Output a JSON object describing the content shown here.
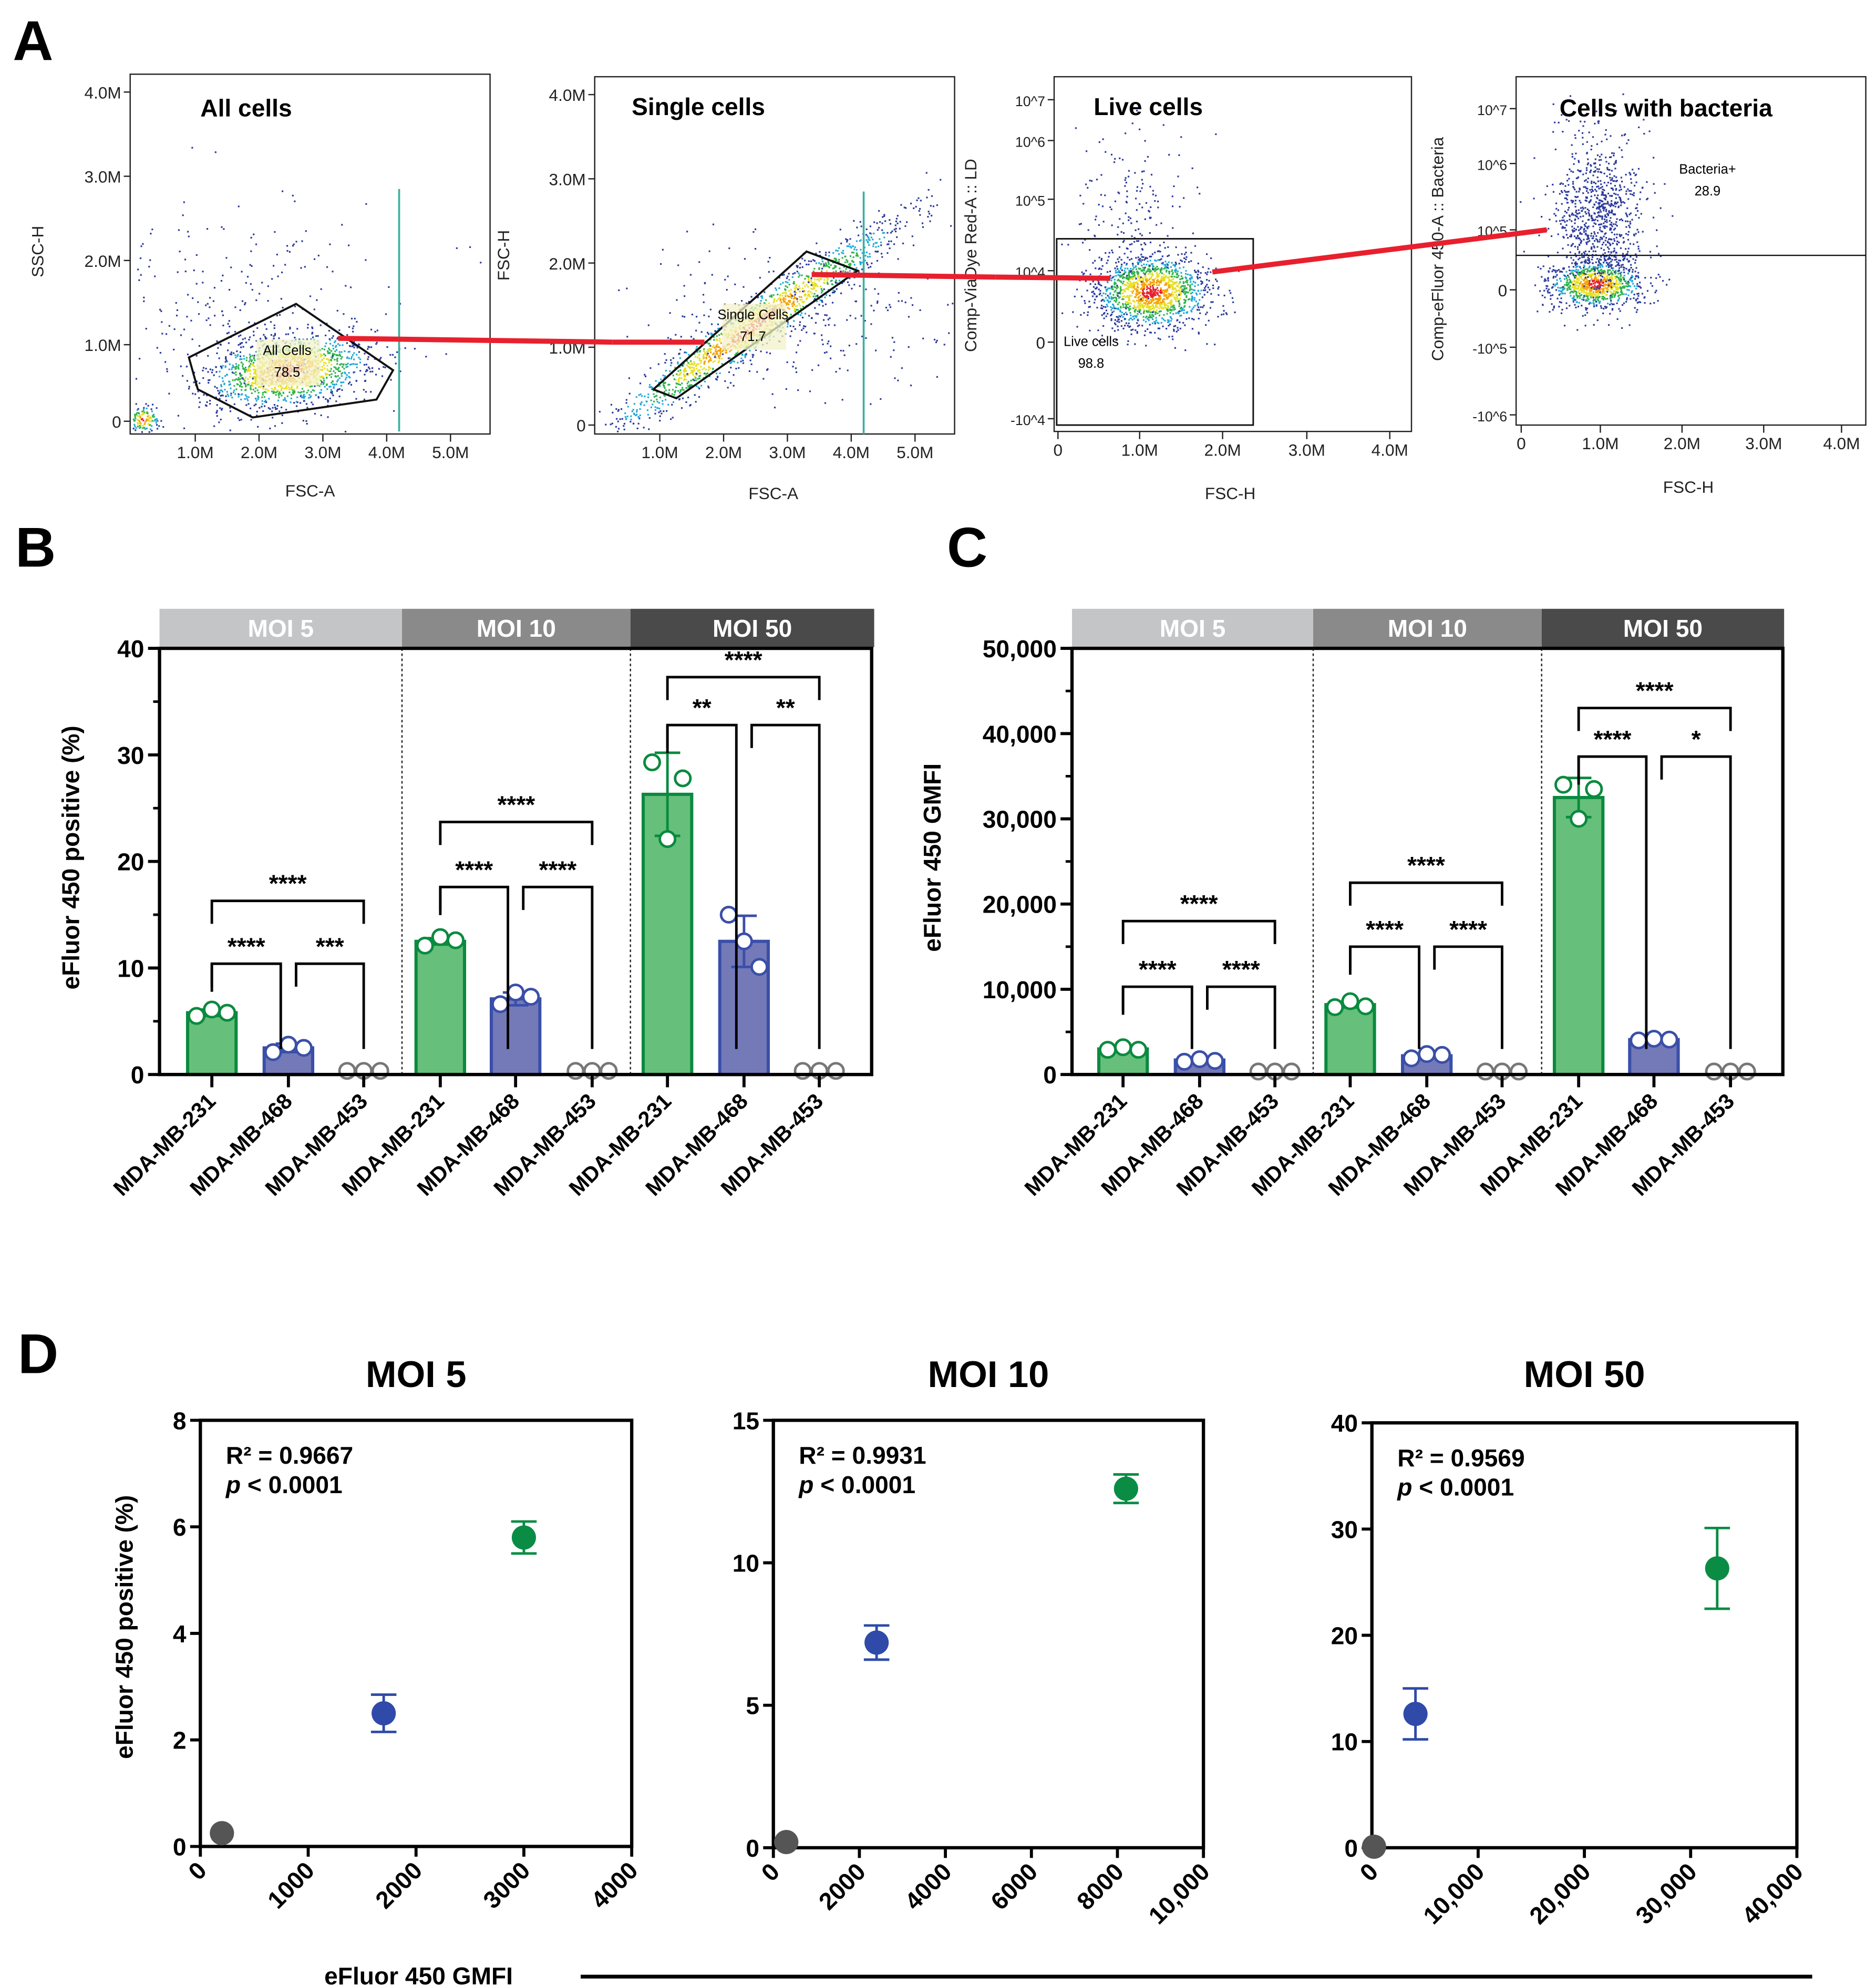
{
  "panel_letters": [
    "A",
    "B",
    "C",
    "D"
  ],
  "colors": {
    "green_fill": "#66bf7a",
    "green_stroke": "#0a8a3f",
    "blue_fill": "#7479b8",
    "blue_stroke": "#3a4fa8",
    "gray_point": "#777777",
    "moi5_band": "#c4c5c7",
    "moi10_band": "#8a8a8a",
    "moi50_band": "#4a4a4a",
    "gate_link": "#e8202e",
    "d_green": "#0b8c45",
    "d_blue": "#2f4aa8",
    "d_gray": "#555555"
  },
  "flow_panels": [
    {
      "title": "All cells",
      "xlabel": "FSC-A",
      "ylabel": "SSC-H",
      "xticks": [
        "1.0M",
        "2.0M",
        "3.0M",
        "4.0M",
        "5.0M"
      ],
      "yticks": [
        "4.0M",
        "3.0M",
        "2.0M",
        "1.0M",
        "0"
      ],
      "gate_name": "All Cells",
      "gate_value": "78.5"
    },
    {
      "title": "Single cells",
      "xlabel": "FSC-A",
      "ylabel": "FSC-H",
      "xticks": [
        "1.0M",
        "2.0M",
        "3.0M",
        "4.0M",
        "5.0M"
      ],
      "yticks": [
        "4.0M",
        "3.0M",
        "2.0M",
        "1.0M",
        "0"
      ],
      "gate_name": "Single Cells",
      "gate_value": "71.7"
    },
    {
      "title": "Live cells",
      "xlabel": "FSC-H",
      "ylabel": "Comp-ViaDye Red-A :: LD",
      "xticks": [
        "0",
        "1.0M",
        "2.0M",
        "3.0M",
        "4.0M"
      ],
      "yticks": [
        "10^7",
        "10^6",
        "10^5",
        "10^4",
        "0",
        "-10^4"
      ],
      "gate_name": "Live cells",
      "gate_value": "98.8"
    },
    {
      "title": "Cells with bacteria",
      "xlabel": "FSC-H",
      "ylabel": "Comp-eFluor 450-A :: Bacteria",
      "xticks": [
        "0",
        "1.0M",
        "2.0M",
        "3.0M",
        "4.0M"
      ],
      "yticks": [
        "10^7",
        "10^6",
        "10^5",
        "0",
        "-10^5",
        "-10^6"
      ],
      "gate_name": "Bacteria+",
      "gate_value": "28.9"
    }
  ],
  "chart_data": [
    {
      "panel": "B",
      "type": "bar",
      "ylabel": "eFluor 450 positive (%)",
      "ylim": [
        0,
        40
      ],
      "yticks": [
        "0",
        "10",
        "20",
        "30",
        "40"
      ],
      "groups": [
        "MOI 5",
        "MOI 10",
        "MOI 50"
      ],
      "categories": [
        "MDA-MB-231",
        "MDA-MB-468",
        "MDA-MB-453"
      ],
      "values": [
        [
          5.8,
          2.5,
          0
        ],
        [
          12.5,
          7.1,
          0
        ],
        [
          26.3,
          12.5,
          0
        ]
      ],
      "errors": [
        [
          0.3,
          0.4,
          0
        ],
        [
          0.3,
          0.6,
          0
        ],
        [
          3.9,
          2.4,
          0
        ]
      ],
      "points": [
        [
          [
            5.5,
            6.1,
            5.8
          ],
          [
            2.1,
            2.8,
            2.5
          ],
          [
            0.1,
            0.1,
            0.1
          ]
        ],
        [
          [
            12.1,
            12.9,
            12.6
          ],
          [
            6.6,
            7.7,
            7.3
          ],
          [
            0.1,
            0.1,
            0.1
          ]
        ],
        [
          [
            29.3,
            22.1,
            27.8
          ],
          [
            15.0,
            12.5,
            10.1
          ],
          [
            0.1,
            0.1,
            0.1
          ]
        ]
      ],
      "significance": [
        [
          {
            "from": 0,
            "to": 2,
            "y": 16.3,
            "label": "****"
          },
          {
            "from": 0,
            "to": 1,
            "y": 10.4,
            "label": "****"
          },
          {
            "from": 1,
            "to": 2,
            "y": 10.4,
            "label": "***"
          }
        ],
        [
          {
            "from": 0,
            "to": 2,
            "y": 23.7,
            "label": "****"
          },
          {
            "from": 0,
            "to": 1,
            "y": 17.6,
            "label": "****"
          },
          {
            "from": 1,
            "to": 2,
            "y": 17.6,
            "label": "****"
          }
        ],
        [
          {
            "from": 0,
            "to": 2,
            "y": 37.3,
            "label": "****"
          },
          {
            "from": 0,
            "to": 1,
            "y": 32.8,
            "label": "**"
          },
          {
            "from": 1,
            "to": 2,
            "y": 32.8,
            "label": "**"
          }
        ]
      ]
    },
    {
      "panel": "C",
      "type": "bar",
      "ylabel": "eFluor 450 GMFI",
      "ylim": [
        0,
        50000
      ],
      "yticks": [
        "0",
        "10,000",
        "20,000",
        "30,000",
        "40,000",
        "50,000"
      ],
      "groups": [
        "MOI 5",
        "MOI 10",
        "MOI 50"
      ],
      "categories": [
        "MDA-MB-231",
        "MDA-MB-468",
        "MDA-MB-453"
      ],
      "values": [
        [
          3000,
          1700,
          0
        ],
        [
          8200,
          2200,
          0
        ],
        [
          32500,
          4100,
          0
        ]
      ],
      "errors": [
        [
          200,
          150,
          0
        ],
        [
          350,
          250,
          0
        ],
        [
          2300,
          150,
          0
        ]
      ],
      "points": [
        [
          [
            2900,
            3200,
            2900
          ],
          [
            1500,
            1800,
            1600
          ],
          [
            50,
            50,
            50
          ]
        ],
        [
          [
            7900,
            8600,
            8000
          ],
          [
            1900,
            2400,
            2300
          ],
          [
            50,
            50,
            50
          ]
        ],
        [
          [
            34000,
            30000,
            33500
          ],
          [
            4000,
            4200,
            4100
          ],
          [
            50,
            50,
            50
          ]
        ]
      ],
      "significance": [
        [
          {
            "from": 0,
            "to": 2,
            "y": 18000,
            "label": "****"
          },
          {
            "from": 0,
            "to": 1,
            "y": 10300,
            "label": "****"
          },
          {
            "from": 1,
            "to": 2,
            "y": 10300,
            "label": "****"
          }
        ],
        [
          {
            "from": 0,
            "to": 2,
            "y": 22500,
            "label": "****"
          },
          {
            "from": 0,
            "to": 1,
            "y": 15000,
            "label": "****"
          },
          {
            "from": 1,
            "to": 2,
            "y": 15000,
            "label": "****"
          }
        ],
        [
          {
            "from": 0,
            "to": 2,
            "y": 43000,
            "label": "****"
          },
          {
            "from": 0,
            "to": 1,
            "y": 37300,
            "label": "****"
          },
          {
            "from": 1,
            "to": 2,
            "y": 37300,
            "label": "*"
          }
        ]
      ]
    },
    {
      "panel": "D",
      "type": "scatter",
      "title": "MOI 5",
      "xlim": [
        0,
        4000
      ],
      "ylim": [
        0,
        8
      ],
      "xticks": [
        "0",
        "1000",
        "2000",
        "3000",
        "4000"
      ],
      "yticks": [
        "0",
        "2",
        "4",
        "6",
        "8"
      ],
      "r2": "R² = 0.9667",
      "p": "p",
      "p_rest": " < 0.0001",
      "points": [
        {
          "x": 200,
          "y": 0.25,
          "err": 0,
          "color": "gray"
        },
        {
          "x": 1700,
          "y": 2.5,
          "err": 0.35,
          "color": "blue"
        },
        {
          "x": 3000,
          "y": 5.8,
          "err": 0.3,
          "color": "green"
        }
      ]
    },
    {
      "panel": "D",
      "type": "scatter",
      "title": "MOI 10",
      "xlim": [
        0,
        10000
      ],
      "ylim": [
        0,
        15
      ],
      "xticks": [
        "0",
        "2000",
        "4000",
        "6000",
        "8000",
        "10,000"
      ],
      "yticks": [
        "0",
        "5",
        "10",
        "15"
      ],
      "r2": "R² = 0.9931",
      "p": "p",
      "p_rest": " < 0.0001",
      "points": [
        {
          "x": 300,
          "y": 0.2,
          "err": 0,
          "color": "gray"
        },
        {
          "x": 2400,
          "y": 7.2,
          "err": 0.6,
          "color": "blue"
        },
        {
          "x": 8200,
          "y": 12.6,
          "err": 0.5,
          "color": "green"
        }
      ]
    },
    {
      "panel": "D",
      "type": "scatter",
      "title": "MOI 50",
      "xlim": [
        0,
        40000
      ],
      "ylim": [
        0,
        40
      ],
      "xticks": [
        "0",
        "10,000",
        "20,000",
        "30,000",
        "40,000"
      ],
      "yticks": [
        "0",
        "10",
        "20",
        "30",
        "40"
      ],
      "r2": "R² = 0.9569",
      "p": "p",
      "p_rest": " < 0.0001",
      "points": [
        {
          "x": 200,
          "y": 0.1,
          "err": 0,
          "color": "gray"
        },
        {
          "x": 4100,
          "y": 12.6,
          "err": 2.4,
          "color": "blue"
        },
        {
          "x": 32500,
          "y": 26.3,
          "err": 3.8,
          "color": "green"
        }
      ]
    }
  ],
  "panel_d": {
    "ylabel": "eFluor 450 positive (%)",
    "xlabel": "eFluor 450 GMFI"
  }
}
